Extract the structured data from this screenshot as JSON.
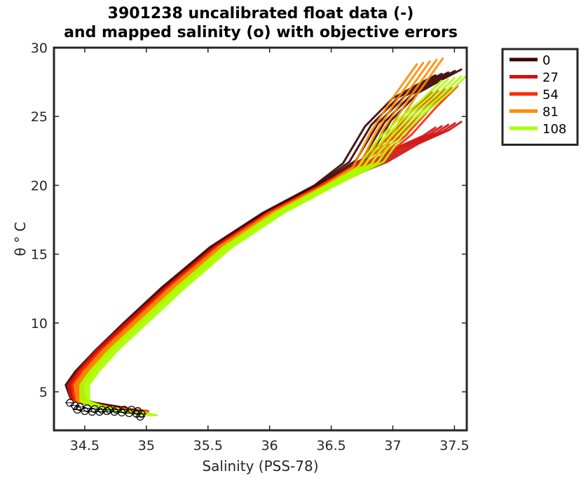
{
  "chart_data": {
    "type": "line",
    "title": [
      "3901238 uncalibrated float data (-)",
      "and mapped salinity (o) with objective errors"
    ],
    "xlabel": "Salinity (PSS-78)",
    "ylabel": "θ ° C",
    "xlim": [
      34.25,
      37.6
    ],
    "ylim": [
      2.2,
      30
    ],
    "xticks": [
      34.5,
      35,
      35.5,
      36,
      36.5,
      37,
      37.5
    ],
    "xtick_labels": [
      "34.5",
      "35",
      "35.5",
      "36",
      "36.5",
      "37",
      "37.5"
    ],
    "yticks": [
      5,
      10,
      15,
      20,
      25,
      30
    ],
    "ytick_labels": [
      "5",
      "10",
      "15",
      "20",
      "25",
      "30"
    ],
    "grid": false,
    "legend_position": "outside-top-right",
    "series": [
      {
        "name": "0",
        "color": "#3c0000",
        "x": [
          34.92,
          34.75,
          34.55,
          34.42,
          34.38,
          34.46,
          34.62,
          34.85,
          35.15,
          35.55,
          35.98,
          36.4,
          36.7,
          36.88,
          37.1,
          37.3,
          37.45
        ],
        "y": [
          3.6,
          3.9,
          4.2,
          4.5,
          5.5,
          6.5,
          8.0,
          10.0,
          12.5,
          15.5,
          18.0,
          20.0,
          21.8,
          24.5,
          26.5,
          27.5,
          28.2
        ]
      },
      {
        "name": "27",
        "color": "#d21010",
        "x": [
          34.95,
          34.75,
          34.55,
          34.42,
          34.4,
          34.48,
          34.63,
          34.87,
          35.18,
          35.58,
          36.02,
          36.45,
          36.85,
          37.1,
          37.35,
          37.45
        ],
        "y": [
          3.5,
          3.8,
          4.1,
          4.5,
          5.5,
          6.5,
          8.0,
          10.0,
          12.5,
          15.5,
          18.0,
          20.0,
          21.5,
          22.8,
          23.8,
          24.4
        ]
      },
      {
        "name": "54",
        "color": "#ff2a00",
        "x": [
          34.98,
          34.78,
          34.58,
          34.45,
          34.43,
          34.5,
          34.66,
          34.9,
          35.2,
          35.6,
          36.02,
          36.45,
          36.82,
          37.05,
          37.25,
          37.42
        ],
        "y": [
          3.6,
          3.8,
          4.0,
          4.4,
          5.5,
          6.5,
          8.0,
          10.0,
          12.5,
          15.5,
          18.0,
          20.0,
          21.8,
          23.5,
          25.5,
          27.0
        ]
      },
      {
        "name": "81",
        "color": "#ff8c00",
        "x": [
          34.98,
          34.78,
          34.6,
          34.47,
          34.45,
          34.53,
          34.68,
          34.92,
          35.22,
          35.62,
          36.05,
          36.48,
          36.78,
          36.92,
          37.1,
          37.3
        ],
        "y": [
          3.5,
          3.7,
          4.0,
          4.4,
          5.5,
          6.5,
          8.0,
          10.0,
          12.5,
          15.5,
          18.0,
          20.0,
          21.5,
          24.0,
          26.5,
          29.0
        ]
      },
      {
        "name": "108",
        "color": "#aaff00",
        "x": [
          35.05,
          34.82,
          34.62,
          34.5,
          34.5,
          34.58,
          34.73,
          34.97,
          35.27,
          35.66,
          36.08,
          36.5,
          36.82,
          36.98,
          37.15,
          37.35,
          37.5
        ],
        "y": [
          3.3,
          3.6,
          3.9,
          4.3,
          5.5,
          6.5,
          8.0,
          10.0,
          12.5,
          15.5,
          18.0,
          20.0,
          21.5,
          23.5,
          25.0,
          26.5,
          27.8
        ]
      }
    ],
    "mapped_points": {
      "marker": "o",
      "color": "#000000",
      "x": [
        34.38,
        34.42,
        34.46,
        34.52,
        34.58,
        34.64,
        34.7,
        34.76,
        34.82,
        34.88,
        34.93,
        34.96,
        34.44,
        34.5,
        34.56,
        34.62,
        34.68,
        34.74,
        34.8,
        34.86,
        34.92,
        34.95
      ],
      "y": [
        4.2,
        4.0,
        3.9,
        3.8,
        3.75,
        3.7,
        3.7,
        3.7,
        3.7,
        3.7,
        3.6,
        3.4,
        3.7,
        3.6,
        3.55,
        3.55,
        3.6,
        3.55,
        3.5,
        3.45,
        3.4,
        3.2
      ]
    }
  }
}
